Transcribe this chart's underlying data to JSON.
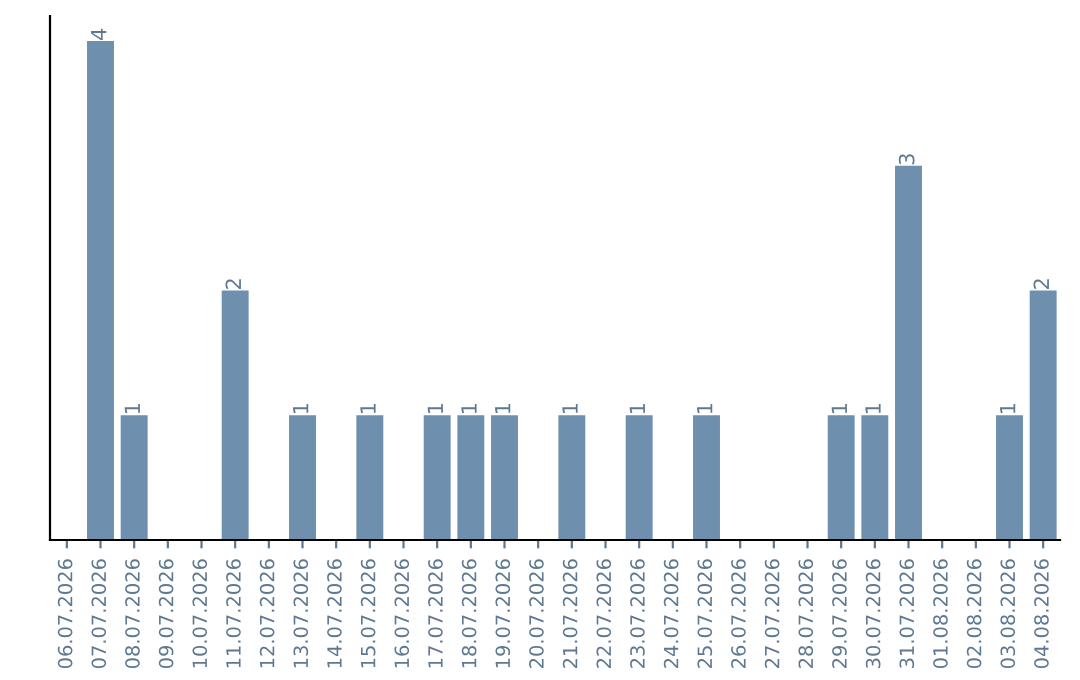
{
  "chart_data": {
    "type": "bar",
    "categories": [
      "06.07.2026",
      "07.07.2026",
      "08.07.2026",
      "09.07.2026",
      "10.07.2026",
      "11.07.2026",
      "12.07.2026",
      "13.07.2026",
      "14.07.2026",
      "15.07.2026",
      "16.07.2026",
      "17.07.2026",
      "18.07.2026",
      "19.07.2026",
      "20.07.2026",
      "21.07.2026",
      "22.07.2026",
      "23.07.2026",
      "24.07.2026",
      "25.07.2026",
      "26.07.2026",
      "27.07.2026",
      "28.07.2026",
      "29.07.2026",
      "30.07.2026",
      "31.07.2026",
      "01.08.2026",
      "02.08.2026",
      "03.08.2026",
      "04.08.2026"
    ],
    "values": [
      null,
      4,
      1,
      null,
      null,
      2,
      null,
      1,
      null,
      1,
      null,
      1,
      1,
      1,
      null,
      1,
      null,
      1,
      null,
      1,
      null,
      null,
      null,
      1,
      1,
      3,
      null,
      null,
      1,
      2
    ],
    "color": "#6e8fae",
    "ylim": [
      0,
      4.2
    ],
    "data_labels": true,
    "tick_labels": "x",
    "grid": false,
    "legend": false
  }
}
